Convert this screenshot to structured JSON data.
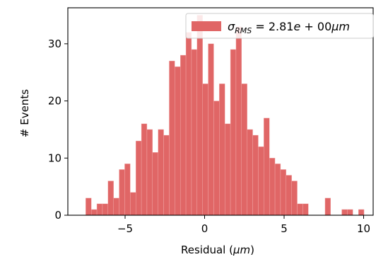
{
  "chart_data": {
    "type": "bar",
    "xlabel_prefix": "Residual (",
    "xlabel_unit": "μm",
    "xlabel_suffix": ")",
    "ylabel": "# Events",
    "xlim": [
      -8.6,
      10.6
    ],
    "ylim": [
      0,
      36.3
    ],
    "x_ticks": [
      -5,
      0,
      5,
      10
    ],
    "x_tick_labels": [
      "−5",
      "0",
      "5",
      "10"
    ],
    "y_ticks": [
      0,
      10,
      20,
      30
    ],
    "y_tick_labels": [
      "0",
      "10",
      "20",
      "30"
    ],
    "bin_width": 0.35,
    "bar_color": "#e06666",
    "legend": {
      "position": "top-right",
      "sigma": "σ",
      "subscript": "RMS",
      "equals": " = 2.81",
      "e": "e",
      "plus": " + 00",
      "unit": "μm"
    },
    "bins": [
      {
        "x": -7.3,
        "count": 3
      },
      {
        "x": -6.95,
        "count": 1
      },
      {
        "x": -6.6,
        "count": 2
      },
      {
        "x": -6.25,
        "count": 2
      },
      {
        "x": -5.9,
        "count": 6
      },
      {
        "x": -5.55,
        "count": 3
      },
      {
        "x": -5.2,
        "count": 8
      },
      {
        "x": -4.85,
        "count": 9
      },
      {
        "x": -4.5,
        "count": 4
      },
      {
        "x": -4.15,
        "count": 13
      },
      {
        "x": -3.8,
        "count": 16
      },
      {
        "x": -3.45,
        "count": 15
      },
      {
        "x": -3.1,
        "count": 11
      },
      {
        "x": -2.75,
        "count": 15
      },
      {
        "x": -2.4,
        "count": 14
      },
      {
        "x": -2.05,
        "count": 27
      },
      {
        "x": -1.7,
        "count": 26
      },
      {
        "x": -1.35,
        "count": 28
      },
      {
        "x": -1.0,
        "count": 32
      },
      {
        "x": -0.65,
        "count": 29
      },
      {
        "x": -0.3,
        "count": 35
      },
      {
        "x": 0.05,
        "count": 23
      },
      {
        "x": 0.4,
        "count": 30
      },
      {
        "x": 0.75,
        "count": 20
      },
      {
        "x": 1.1,
        "count": 23
      },
      {
        "x": 1.45,
        "count": 16
      },
      {
        "x": 1.8,
        "count": 29
      },
      {
        "x": 2.15,
        "count": 33
      },
      {
        "x": 2.5,
        "count": 23
      },
      {
        "x": 2.85,
        "count": 15
      },
      {
        "x": 3.2,
        "count": 14
      },
      {
        "x": 3.55,
        "count": 12
      },
      {
        "x": 3.9,
        "count": 17
      },
      {
        "x": 4.25,
        "count": 10
      },
      {
        "x": 4.6,
        "count": 9
      },
      {
        "x": 4.95,
        "count": 8
      },
      {
        "x": 5.3,
        "count": 7
      },
      {
        "x": 5.65,
        "count": 6
      },
      {
        "x": 6.0,
        "count": 2
      },
      {
        "x": 6.35,
        "count": 2
      },
      {
        "x": 6.7,
        "count": 0
      },
      {
        "x": 7.05,
        "count": 0
      },
      {
        "x": 7.4,
        "count": 0
      },
      {
        "x": 7.75,
        "count": 3
      },
      {
        "x": 8.1,
        "count": 0
      },
      {
        "x": 8.45,
        "count": 0
      },
      {
        "x": 8.8,
        "count": 1
      },
      {
        "x": 9.15,
        "count": 1
      },
      {
        "x": 9.5,
        "count": 0
      },
      {
        "x": 9.85,
        "count": 1
      }
    ]
  }
}
